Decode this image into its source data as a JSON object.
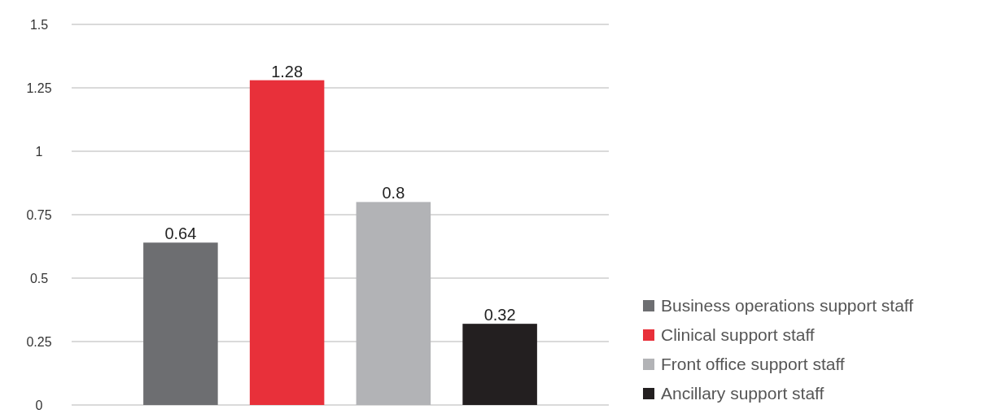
{
  "chart_data": {
    "type": "bar",
    "categories": [
      null
    ],
    "series": [
      {
        "name": "Business operations support staff",
        "color": "#6d6e71",
        "values": [
          0.64
        ]
      },
      {
        "name": "Clinical support staff",
        "color": "#e8303a",
        "values": [
          1.28
        ]
      },
      {
        "name": "Front office support staff",
        "color": "#b2b3b6",
        "values": [
          0.8
        ]
      },
      {
        "name": "Ancillary support staff",
        "color": "#231f20",
        "values": [
          0.32
        ]
      }
    ],
    "ylim": [
      0,
      1.5
    ],
    "yticks": [
      0,
      0.25,
      0.5,
      0.75,
      1,
      1.25,
      1.5
    ],
    "grid": "y",
    "legend": "right",
    "data_labels": true
  }
}
